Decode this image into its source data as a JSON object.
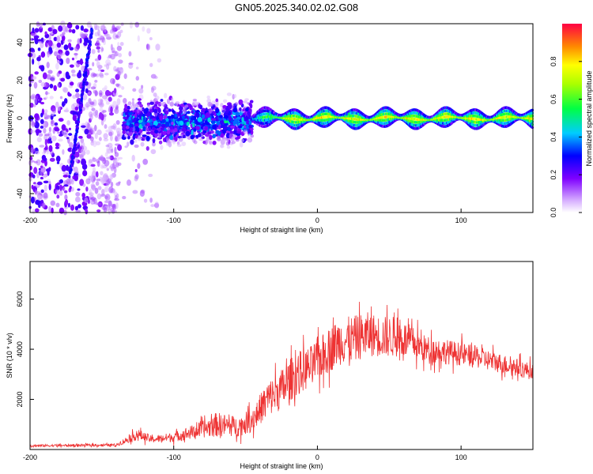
{
  "figure": {
    "title": "GN05.2025.340.02.02.G08"
  },
  "colors": {
    "snr_line": "#ee3333",
    "axis": "#000000"
  },
  "chart_data": [
    {
      "type": "heatmap",
      "xlabel": "Height of straight line (km)",
      "ylabel": "Frequency (Hz)",
      "xlim": [
        -200,
        150
      ],
      "ylim": [
        -50,
        50
      ],
      "xticks": [
        -200,
        -100,
        0,
        100
      ],
      "yticks": [
        -40,
        -20,
        0,
        20,
        40
      ],
      "colorbar": {
        "label": "Normalized spectral amplitude",
        "range": [
          0,
          1
        ],
        "ticks": [
          0.0,
          0.2,
          0.4,
          0.6,
          0.8
        ],
        "colormap": "rainbow"
      },
      "features": [
        {
          "name": "ridge",
          "from_x": -45,
          "to_x": 150,
          "freq": 0,
          "amplitude": 0.75
        },
        {
          "name": "cluster",
          "from_x": -135,
          "to_x": -45,
          "freq_center": -2,
          "freq_spread": 9,
          "amplitude": 0.35
        },
        {
          "name": "streak",
          "from_x": -172,
          "to_x": -157,
          "from_freq": -30,
          "to_freq": 47,
          "amplitude": 0.22
        },
        {
          "name": "noise",
          "from_x": -200,
          "to_x": -110,
          "freq_range": [
            -50,
            50
          ],
          "amplitude": 0.12
        }
      ]
    },
    {
      "type": "line",
      "xlabel": "Height of straight line (km)",
      "ylabel": "SNR (10 * v/v)",
      "xlim": [
        -200,
        150
      ],
      "ylim": [
        0,
        7500
      ],
      "xticks": [
        -200,
        -100,
        0,
        100
      ],
      "yticks": [
        2000,
        4000,
        6000
      ],
      "series": [
        {
          "envelope_x": [
            -200,
            -140,
            -125,
            -115,
            -100,
            -80,
            -70,
            -55,
            -45,
            -35,
            -25,
            -15,
            -5,
            5,
            15,
            25,
            35,
            45,
            55,
            65,
            75,
            90,
            110,
            130,
            150
          ],
          "envelope_mean": [
            150,
            180,
            600,
            400,
            500,
            800,
            1000,
            900,
            1200,
            2000,
            2400,
            3000,
            3300,
            3800,
            4300,
            4400,
            4600,
            4500,
            4500,
            4300,
            4000,
            3900,
            3700,
            3400,
            3100
          ],
          "envelope_spread": [
            80,
            100,
            400,
            250,
            350,
            600,
            900,
            700,
            900,
            1300,
            1500,
            1600,
            1500,
            1600,
            1700,
            1700,
            1600,
            1500,
            1500,
            1200,
            1000,
            900,
            800,
            700,
            600
          ]
        }
      ]
    }
  ]
}
